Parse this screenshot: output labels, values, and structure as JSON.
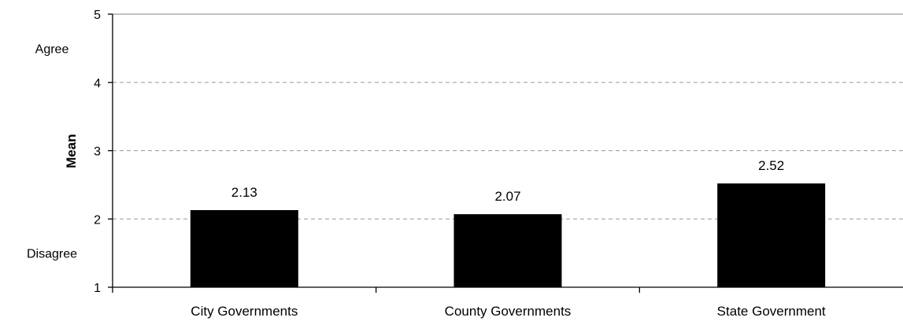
{
  "chart_data": {
    "type": "bar",
    "title": "",
    "xlabel": "",
    "ylabel": "Mean",
    "categories": [
      "City Governments",
      "County Governments",
      "State Government"
    ],
    "values": [
      2.13,
      2.07,
      2.52
    ],
    "data_labels": [
      "2.13",
      "2.07",
      "2.52"
    ],
    "ylim": [
      1,
      5
    ],
    "yticks": [
      1,
      2,
      3,
      4,
      5
    ],
    "ytick_labels": [
      "1",
      "2",
      "3",
      "4",
      "5"
    ],
    "scale_annotations": [
      {
        "text": "Agree",
        "y": 4.5
      },
      {
        "text": "Disagree",
        "y": 1.5
      }
    ],
    "gridlines": "dashed horizontal at major ticks",
    "legend": "none",
    "bar_color": "#000000"
  }
}
